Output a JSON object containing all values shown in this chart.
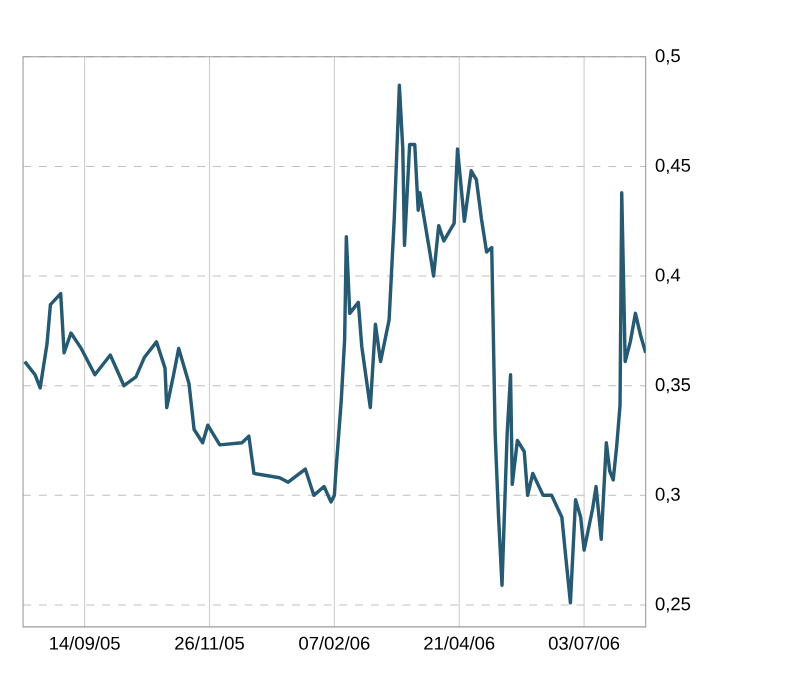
{
  "chart_data": {
    "type": "line",
    "color": "#265a72",
    "grid": true,
    "marker": "none",
    "line_style": "solid",
    "xlim": [
      "2005-08-09",
      "2006-08-08"
    ],
    "xticks": [
      {
        "value": "2005-09-14",
        "label": "14/09/05"
      },
      {
        "value": "2005-11-26",
        "label": "26/11/05"
      },
      {
        "value": "2006-02-07",
        "label": "07/02/06"
      },
      {
        "value": "2006-04-21",
        "label": "21/04/06"
      },
      {
        "value": "2006-07-03",
        "label": "03/07/06"
      }
    ],
    "ylim": [
      0.24,
      0.5
    ],
    "yticks": [
      {
        "value": 0.25,
        "label": "0,25"
      },
      {
        "value": 0.3,
        "label": "0,3"
      },
      {
        "value": 0.35,
        "label": "0,35"
      },
      {
        "value": 0.4,
        "label": "0,4"
      },
      {
        "value": 0.45,
        "label": "0,45"
      },
      {
        "value": 0.5,
        "label": "0,5"
      }
    ],
    "x": [
      "2005-08-10",
      "2005-08-16",
      "2005-08-19",
      "2005-08-23",
      "2005-08-25",
      "2005-08-31",
      "2005-09-02",
      "2005-09-06",
      "2005-09-12",
      "2005-09-20",
      "2005-09-29",
      "2005-10-07",
      "2005-10-14",
      "2005-10-19",
      "2005-10-26",
      "2005-10-31",
      "2005-11-01",
      "2005-11-05",
      "2005-11-08",
      "2005-11-14",
      "2005-11-17",
      "2005-11-22",
      "2005-11-25",
      "2005-12-02",
      "2005-12-15",
      "2005-12-19",
      "2005-12-22",
      "2006-01-06",
      "2006-01-11",
      "2006-01-21",
      "2006-01-26",
      "2006-02-01",
      "2006-02-05",
      "2006-02-07",
      "2006-02-08",
      "2006-02-11",
      "2006-02-13",
      "2006-02-14",
      "2006-02-16",
      "2006-02-21",
      "2006-02-23",
      "2006-02-28",
      "2006-03-03",
      "2006-03-06",
      "2006-03-11",
      "2006-03-14",
      "2006-03-17",
      "2006-03-19",
      "2006-03-20",
      "2006-03-23",
      "2006-03-26",
      "2006-03-28",
      "2006-03-29",
      "2006-04-04",
      "2006-04-06",
      "2006-04-09",
      "2006-04-12",
      "2006-04-18",
      "2006-04-20",
      "2006-04-24",
      "2006-04-28",
      "2006-05-01",
      "2006-05-04",
      "2006-05-07",
      "2006-05-10",
      "2006-05-12",
      "2006-05-14",
      "2006-05-16",
      "2006-05-19",
      "2006-05-21",
      "2006-05-22",
      "2006-05-25",
      "2006-05-29",
      "2006-05-31",
      "2006-06-03",
      "2006-06-09",
      "2006-06-14",
      "2006-06-20",
      "2006-06-22",
      "2006-06-25",
      "2006-06-28",
      "2006-07-01",
      "2006-07-03",
      "2006-07-08",
      "2006-07-10",
      "2006-07-13",
      "2006-07-16",
      "2006-07-18",
      "2006-07-20",
      "2006-07-22",
      "2006-07-24",
      "2006-07-25",
      "2006-07-26",
      "2006-07-27",
      "2006-07-30",
      "2006-08-02",
      "2006-08-05",
      "2006-08-08"
    ],
    "values": [
      0.361,
      0.355,
      0.349,
      0.369,
      0.387,
      0.392,
      0.365,
      0.374,
      0.367,
      0.355,
      0.364,
      0.35,
      0.354,
      0.363,
      0.37,
      0.358,
      0.34,
      0.355,
      0.367,
      0.351,
      0.33,
      0.324,
      0.332,
      0.323,
      0.324,
      0.327,
      0.31,
      0.308,
      0.306,
      0.312,
      0.3,
      0.304,
      0.297,
      0.3,
      0.312,
      0.343,
      0.371,
      0.418,
      0.383,
      0.388,
      0.368,
      0.34,
      0.378,
      0.361,
      0.38,
      0.426,
      0.487,
      0.458,
      0.414,
      0.46,
      0.46,
      0.43,
      0.438,
      0.41,
      0.4,
      0.423,
      0.416,
      0.424,
      0.458,
      0.425,
      0.448,
      0.444,
      0.426,
      0.411,
      0.413,
      0.328,
      0.29,
      0.259,
      0.328,
      0.355,
      0.305,
      0.325,
      0.32,
      0.3,
      0.31,
      0.3,
      0.3,
      0.29,
      0.274,
      0.251,
      0.298,
      0.29,
      0.275,
      0.294,
      0.304,
      0.28,
      0.324,
      0.311,
      0.307,
      0.322,
      0.341,
      0.438,
      0.4,
      0.361,
      0.37,
      0.383,
      0.373,
      0.365
    ]
  }
}
